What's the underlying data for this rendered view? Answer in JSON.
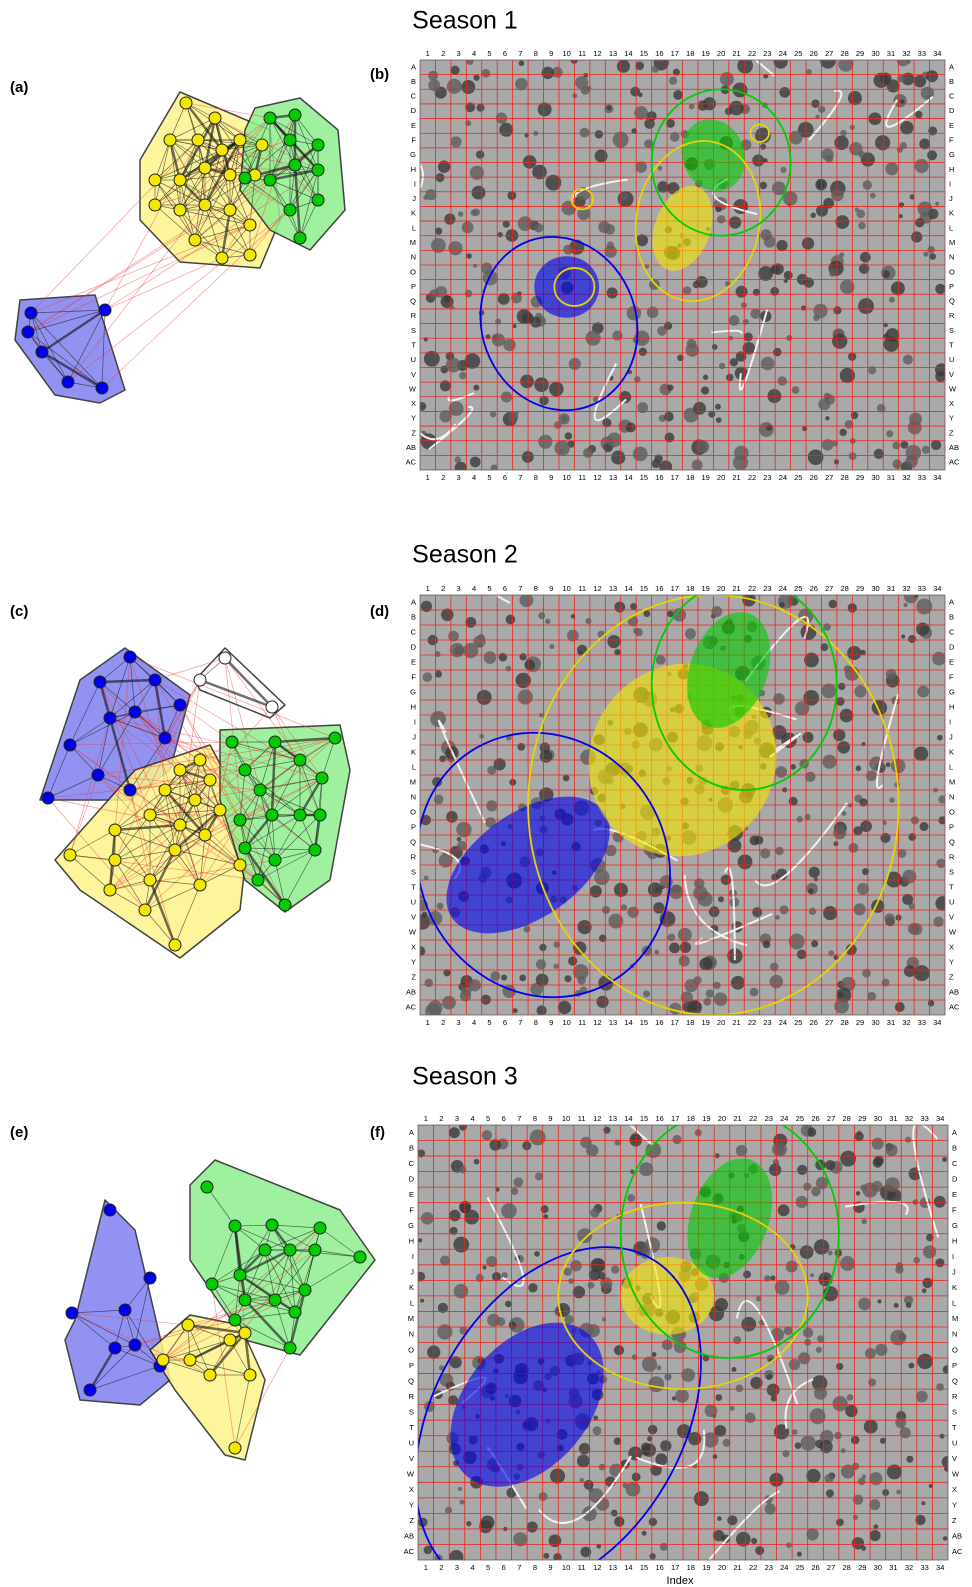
{
  "panels": [
    {
      "title": "Season 1",
      "network_label": "(a)",
      "map_label": "(b)"
    },
    {
      "title": "Season 2",
      "network_label": "(c)",
      "map_label": "(d)"
    },
    {
      "title": "Season 3",
      "network_label": "(e)",
      "map_label": "(f)"
    }
  ],
  "grid": {
    "columns": [
      "1",
      "2",
      "3",
      "4",
      "5",
      "6",
      "7",
      "8",
      "9",
      "10",
      "11",
      "12",
      "13",
      "14",
      "15",
      "16",
      "17",
      "18",
      "19",
      "20",
      "21",
      "22",
      "23",
      "24",
      "25",
      "26",
      "27",
      "28",
      "29",
      "30",
      "31",
      "32",
      "33",
      "34"
    ],
    "rows": [
      "A",
      "B",
      "C",
      "D",
      "E",
      "F",
      "G",
      "H",
      "I",
      "J",
      "K",
      "L",
      "M",
      "N",
      "O",
      "P",
      "Q",
      "R",
      "S",
      "T",
      "U",
      "V",
      "W",
      "X",
      "Y",
      "Z",
      "AB",
      "AC"
    ]
  },
  "x_axis_label": "Index"
}
